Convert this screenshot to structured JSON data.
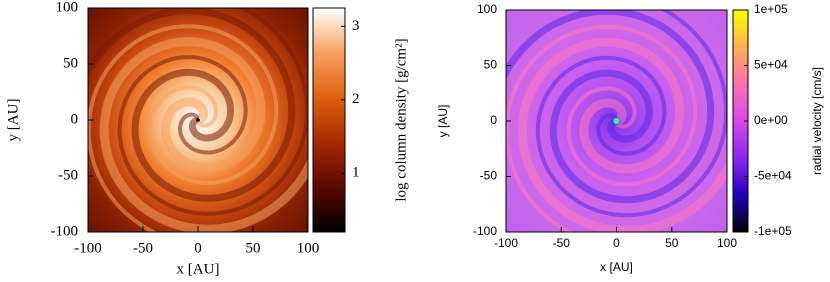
{
  "chart_data": [
    {
      "type": "heatmap",
      "xlabel": "x [AU]",
      "ylabel": "y [AU]",
      "xlim": [
        -100,
        100
      ],
      "ylim": [
        -100,
        100
      ],
      "xticks": [
        -100,
        -50,
        0,
        50,
        100
      ],
      "yticks": [
        -100,
        -50,
        0,
        50,
        100
      ],
      "colorbar_label": "log column density [g/cm²]",
      "clim": [
        0.2,
        3.25
      ],
      "cticks": [
        1,
        2,
        3
      ],
      "colormap": [
        "#000000",
        "#5a0800",
        "#a82800",
        "#e06010",
        "#f8a060",
        "#ffffff"
      ]
    },
    {
      "type": "heatmap",
      "xlabel": "x [AU]",
      "ylabel": "y [AU]",
      "xlim": [
        -100,
        100
      ],
      "ylim": [
        -100,
        100
      ],
      "xticks": [
        -100,
        -50,
        0,
        50,
        100
      ],
      "yticks": [
        -100,
        -50,
        0,
        50,
        100
      ],
      "colorbar_label": "radial velocity [cm/s]",
      "clim": [
        -100000,
        100000
      ],
      "cticks": [
        {
          "value": -100000,
          "label": "-1e+05"
        },
        {
          "value": -50000,
          "label": "-5e+04"
        },
        {
          "value": 0,
          "label": "0e+00"
        },
        {
          "value": 50000,
          "label": "5e+04"
        },
        {
          "value": 100000,
          "label": "1e+05"
        }
      ],
      "colormap": [
        "#000000",
        "#2000c0",
        "#8a28f0",
        "#d848e8",
        "#ff70b0",
        "#ffb050",
        "#ffff00"
      ]
    }
  ]
}
